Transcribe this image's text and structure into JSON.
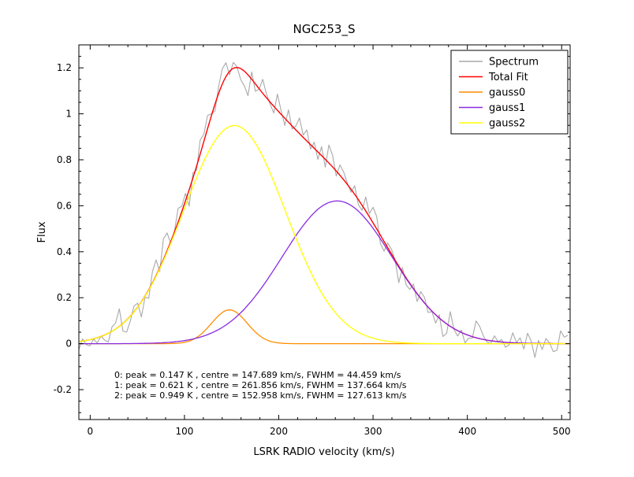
{
  "chart_data": {
    "type": "line",
    "title": "NGC253_S",
    "xlabel": "LSRK RADIO velocity (km/s)",
    "ylabel": "Flux",
    "xlim": [
      -12,
      509
    ],
    "ylim": [
      -0.33,
      1.3
    ],
    "grid": false,
    "xticks": [
      0,
      100,
      200,
      300,
      400,
      500
    ],
    "xtick_labels": [
      "0",
      "100",
      "200",
      "300",
      "400",
      "500"
    ],
    "x_minor_step": 20,
    "yticks": [
      -0.2,
      0,
      0.2,
      0.4,
      0.6,
      0.8,
      1.0,
      1.2
    ],
    "ytick_labels": [
      "-0.2",
      "0",
      "0.2",
      "0.4",
      "0.6",
      "0.8",
      "1",
      "1.2"
    ],
    "y_minor_step": 0.05,
    "legend_position": "upper right",
    "series": [
      {
        "name": "Spectrum",
        "type": "noisy_sum",
        "color": "#a9a9a9"
      },
      {
        "name": "Total Fit",
        "type": "sum",
        "color": "#ff0000"
      },
      {
        "name": "gauss0",
        "type": "gaussian",
        "color": "#ff8c00",
        "peak": 0.147,
        "centre": 147.689,
        "fwhm": 44.459
      },
      {
        "name": "gauss1",
        "type": "gaussian",
        "color": "#8a2be2",
        "peak": 0.621,
        "centre": 261.856,
        "fwhm": 137.664
      },
      {
        "name": "gauss2",
        "type": "gaussian",
        "color": "#ffff00",
        "peak": 0.949,
        "centre": 152.958,
        "fwhm": 127.613
      }
    ],
    "noise_amplitude": 0.042,
    "annotations": [
      "0: peak = 0.147 K , centre = 147.689 km/s, FWHM = 44.459 km/s",
      "1: peak = 0.621 K , centre = 261.856 km/s, FWHM = 137.664 km/s",
      "2: peak = 0.949 K , centre = 152.958 km/s, FWHM = 127.613 km/s"
    ]
  }
}
